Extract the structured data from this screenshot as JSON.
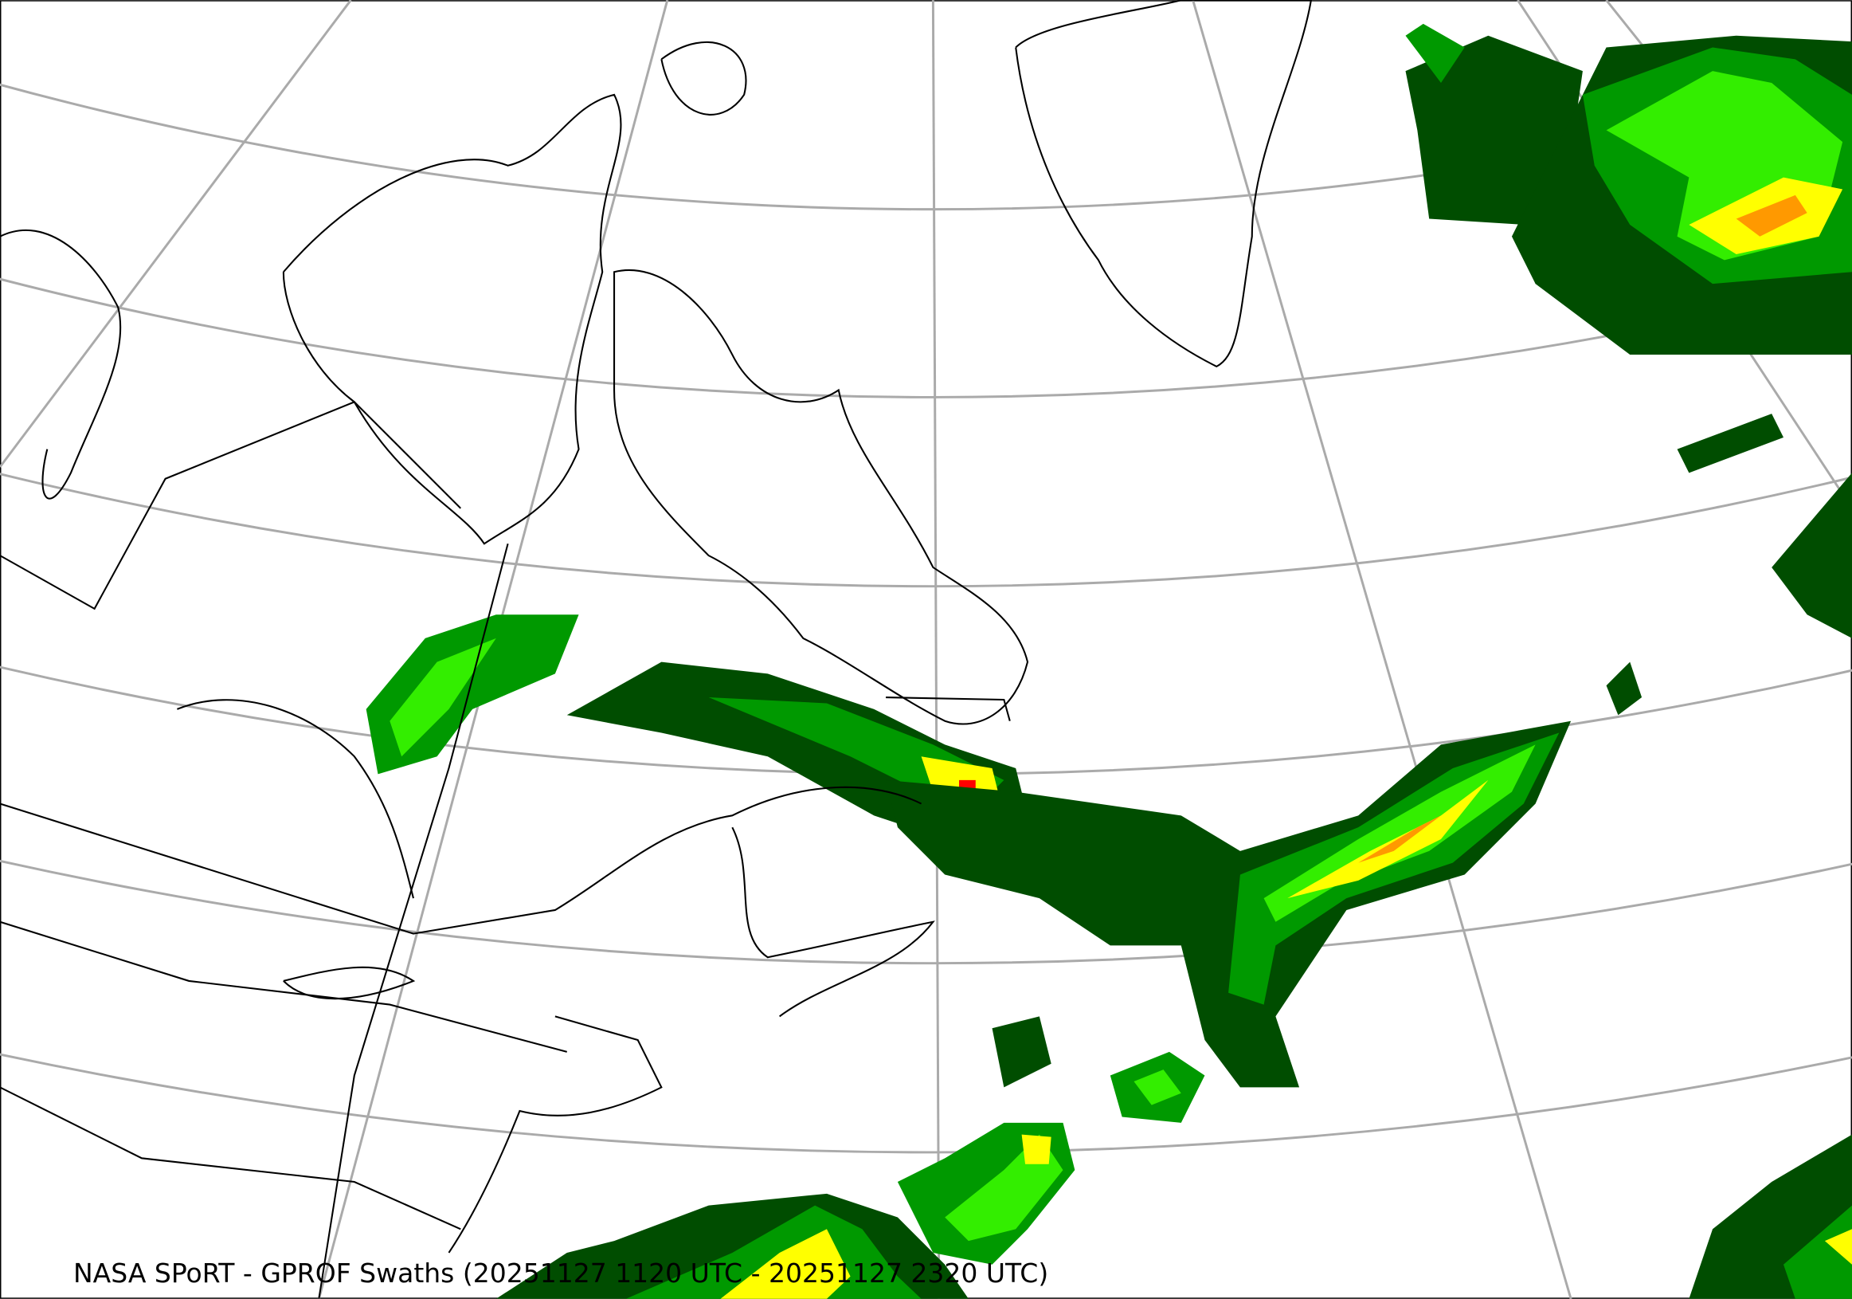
{
  "caption": "NASA SPoRT - GPROF Swaths (20251127 1120 UTC - 20251127 2320 UTC)",
  "map": {
    "projection": "conic",
    "layers": [
      "gridlines",
      "coastlines",
      "borders",
      "precipitation"
    ],
    "colors": {
      "gridline": "#aaaaaa",
      "coastline": "#000000",
      "precip_very_light": "#004d00",
      "precip_light": "#009900",
      "precip_moderate": "#33ee00",
      "precip_heavy": "#ffff00",
      "precip_very_heavy": "#ff9900",
      "precip_extreme": "#ff0000"
    }
  }
}
